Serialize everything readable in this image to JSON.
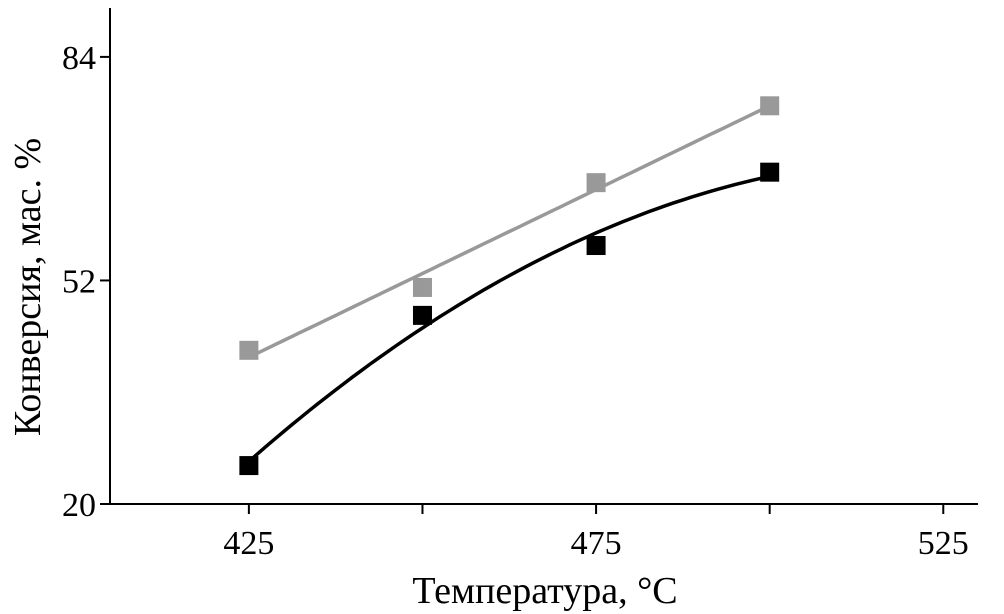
{
  "chart_data": {
    "type": "scatter",
    "title": "",
    "xlabel": "Температура, °C",
    "ylabel": "Конверсия, мас. %",
    "xlim": [
      405,
      530
    ],
    "ylim": [
      20,
      91
    ],
    "xticks": [
      425,
      450,
      475,
      500,
      525
    ],
    "xtick_labels": [
      "425",
      "",
      "475",
      "",
      "525"
    ],
    "yticks": [
      20,
      52,
      84
    ],
    "ytick_labels": [
      "20",
      "52",
      "84"
    ],
    "grid": false,
    "legend": "none",
    "series": [
      {
        "color": "#999999",
        "marker": "square",
        "trend": "linear",
        "x": [
          425,
          450,
          475,
          500
        ],
        "y": [
          42,
          51,
          66,
          77
        ]
      },
      {
        "color": "#000000",
        "marker": "square",
        "trend": "quadratic",
        "x": [
          425,
          450,
          475,
          500
        ],
        "y": [
          25.5,
          47,
          57,
          67.5
        ]
      }
    ]
  }
}
